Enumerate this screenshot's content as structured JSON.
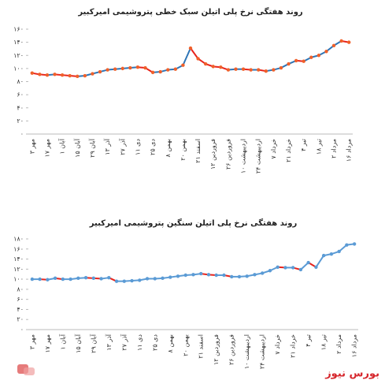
{
  "chart_data": [
    {
      "type": "line",
      "title": "روند هفتگی نرخ پلی اتیلن سبک خطی پتروشیمی امیرکبیر",
      "categories": [
        "۳ مهر",
        null,
        "۱۷ مهر",
        null,
        "۱ آبان",
        null,
        "۱۵ آبان",
        null,
        "۲۹ آبان",
        null,
        "۱۳ آذر",
        null,
        "۲۷ آذر",
        null,
        "۱۱ دی",
        null,
        "۲۵ دی",
        null,
        "۸ بهمن",
        null,
        "۲۰ بهمن",
        null,
        "۲۱ اسفند",
        null,
        "۱۲ فروردین",
        null,
        "۲۶ فروردین",
        null,
        "۱۰ اردیبهشت",
        null,
        "۲۴ اردیبهشت",
        null,
        "۷ خرداد",
        null,
        "۲۱ خرداد",
        null,
        "۴ تیر",
        null,
        "۱۸ تیر",
        null,
        "۲ مرداد",
        null,
        "۱۶ مرداد"
      ],
      "series": [
        {
          "color": "#2e75b6",
          "down_color": "#e8231b",
          "marker_color": "#f0602a",
          "values": [
            93,
            91,
            90,
            91,
            90,
            89,
            88,
            89,
            92,
            95,
            98,
            99,
            100,
            101,
            102,
            101,
            94,
            95,
            98,
            99,
            105,
            131,
            115,
            107,
            103,
            102,
            98,
            99,
            99,
            98,
            98,
            96,
            98,
            101,
            107,
            112,
            111,
            117,
            120,
            126,
            135,
            142,
            140
          ]
        }
      ],
      "ylim": [
        0,
        160
      ],
      "yticks": [
        {
          "value": 0,
          "label": "۰"
        },
        {
          "value": 20,
          "label": "۲۰"
        },
        {
          "value": 40,
          "label": "۴۰"
        },
        {
          "value": 60,
          "label": "۶۰"
        },
        {
          "value": 80,
          "label": "۸۰"
        },
        {
          "value": 100,
          "label": "۱۰۰"
        },
        {
          "value": 120,
          "label": "۱۲۰"
        },
        {
          "value": 140,
          "label": "۱۴۰"
        },
        {
          "value": 160,
          "label": "۱۶۰"
        }
      ],
      "grid": false
    },
    {
      "type": "line",
      "title": "روند هفتگی نرخ پلی اتیلن سنگین پتروشیمی امیرکبیر",
      "categories": [
        "۳ مهر",
        null,
        "۱۷ مهر",
        null,
        "۱ آبان",
        null,
        "۱۵ آبان",
        null,
        "۲۹ آبان",
        null,
        "۱۳ آذر",
        null,
        "۲۷ آذر",
        null,
        "۱۱ دی",
        null,
        "۲۵ دی",
        null,
        "۸ بهمن",
        null,
        "۲۰ بهمن",
        null,
        "۲۱ اسفند",
        null,
        "۱۲ فروردین",
        null,
        "۲۶ فروردین",
        null,
        "۱۰ اردیبهشت",
        null,
        "۲۴ اردیبهشت",
        null,
        "۷ خرداد",
        null,
        "۲۱ خرداد",
        null,
        "۴ تیر",
        null,
        "۱۸ تیر",
        null,
        "۲ مرداد",
        null,
        "۱۶ مرداد"
      ],
      "series": [
        {
          "color": "#5b9bd5",
          "down_color": "#e8231b",
          "marker_color": "#5b9bd5",
          "values": [
            100,
            100,
            99,
            102,
            100,
            100,
            102,
            103,
            102,
            101,
            103,
            96,
            96,
            97,
            98,
            101,
            101,
            102,
            104,
            106,
            108,
            109,
            111,
            109,
            108,
            108,
            105,
            105,
            106,
            109,
            112,
            117,
            124,
            123,
            123,
            119,
            133,
            124,
            147,
            150,
            155,
            168,
            170
          ]
        }
      ],
      "ylim": [
        0,
        180
      ],
      "yticks": [
        {
          "value": 0,
          "label": "۰"
        },
        {
          "value": 20,
          "label": "۲۰"
        },
        {
          "value": 40,
          "label": "۴۰"
        },
        {
          "value": 60,
          "label": "۶۰"
        },
        {
          "value": 80,
          "label": "۸۰"
        },
        {
          "value": 100,
          "label": "۱۰۰"
        },
        {
          "value": 120,
          "label": "۱۲۰"
        },
        {
          "value": 140,
          "label": "۱۴۰"
        },
        {
          "value": 160,
          "label": "۱۶۰"
        },
        {
          "value": 180,
          "label": "۱۸۰"
        }
      ],
      "grid": false
    }
  ],
  "footer": {
    "brand": "بورس نیوز"
  }
}
